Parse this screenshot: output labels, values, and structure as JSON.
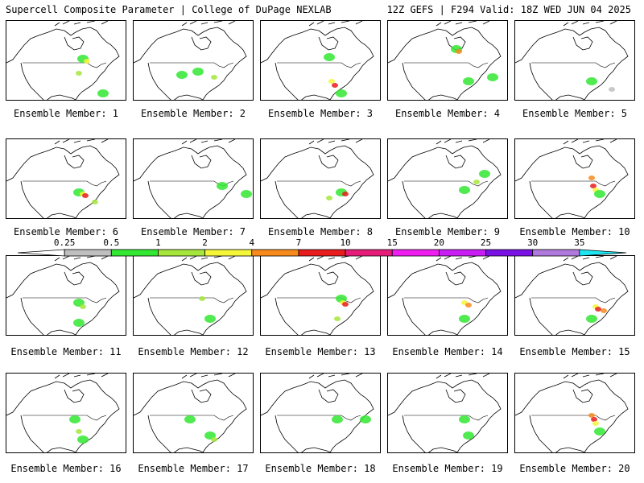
{
  "header": {
    "left": "Supercell Composite Parameter | College of DuPage NEXLAB",
    "right": "12Z GEFS | F294 Valid: 18Z WED JUN 04 2025"
  },
  "colorbar": {
    "labels": [
      "0.25",
      "0.5",
      "1",
      "2",
      "4",
      "7",
      "10",
      "15",
      "20",
      "25",
      "30",
      "35"
    ],
    "colors": [
      "#ffffff",
      "#bfbfbf",
      "#33e833",
      "#a6e63c",
      "#f5f53a",
      "#f78a1c",
      "#e81c1c",
      "#e51c78",
      "#f01ef0",
      "#c81ef5",
      "#7a12e6",
      "#b07adc",
      "#1ee6f0"
    ]
  },
  "members": [
    {
      "label": "Ensemble Member: 1",
      "blobs": [
        [
          95,
          72,
          "#33e833"
        ],
        [
          100,
          75,
          "#f5f53a"
        ],
        [
          90,
          90,
          "#a6e63c"
        ],
        [
          120,
          115,
          "#33e833"
        ]
      ]
    },
    {
      "label": "Ensemble Member: 2",
      "blobs": [
        [
          80,
          88,
          "#33e833"
        ],
        [
          100,
          95,
          "#a6e63c"
        ],
        [
          60,
          92,
          "#33e833"
        ]
      ]
    },
    {
      "label": "Ensemble Member: 3",
      "blobs": [
        [
          85,
          70,
          "#33e833"
        ],
        [
          88,
          100,
          "#f5f53a"
        ],
        [
          92,
          105,
          "#e81c1c"
        ],
        [
          100,
          115,
          "#33e833"
        ]
      ]
    },
    {
      "label": "Ensemble Member: 4",
      "blobs": [
        [
          85,
          60,
          "#33e833"
        ],
        [
          88,
          63,
          "#f78a1c"
        ],
        [
          130,
          95,
          "#33e833"
        ],
        [
          100,
          100,
          "#33e833"
        ]
      ]
    },
    {
      "label": "Ensemble Member: 5",
      "blobs": [
        [
          95,
          100,
          "#33e833"
        ],
        [
          120,
          110,
          "#bfbfbf"
        ]
      ]
    },
    {
      "label": "Ensemble Member: 6",
      "blobs": [
        [
          90,
          238,
          "#33e833"
        ],
        [
          95,
          240,
          "#f5f53a"
        ],
        [
          98,
          242,
          "#e81c1c"
        ],
        [
          110,
          250,
          "#a6e63c"
        ]
      ]
    },
    {
      "label": "Ensemble Member: 7",
      "blobs": [
        [
          110,
          230,
          "#33e833"
        ],
        [
          140,
          240,
          "#33e833"
        ]
      ]
    },
    {
      "label": "Ensemble Member: 8",
      "blobs": [
        [
          100,
          238,
          "#33e833"
        ],
        [
          105,
          240,
          "#e81c1c"
        ],
        [
          85,
          245,
          "#a6e63c"
        ]
      ]
    },
    {
      "label": "Ensemble Member: 9",
      "blobs": [
        [
          95,
          235,
          "#33e833"
        ],
        [
          110,
          225,
          "#a6e63c"
        ],
        [
          120,
          215,
          "#33e833"
        ]
      ]
    },
    {
      "label": "Ensemble Member: 10",
      "blobs": [
        [
          95,
          220,
          "#f78a1c"
        ],
        [
          97,
          230,
          "#e81c1c"
        ],
        [
          100,
          235,
          "#f5f53a"
        ],
        [
          105,
          240,
          "#33e833"
        ]
      ]
    },
    {
      "label": "Ensemble Member: 11",
      "blobs": [
        [
          90,
          375,
          "#33e833"
        ],
        [
          95,
          380,
          "#a6e63c"
        ],
        [
          90,
          400,
          "#33e833"
        ]
      ]
    },
    {
      "label": "Ensemble Member: 12",
      "blobs": [
        [
          85,
          370,
          "#a6e63c"
        ],
        [
          95,
          395,
          "#33e833"
        ]
      ]
    },
    {
      "label": "Ensemble Member: 13",
      "blobs": [
        [
          100,
          370,
          "#33e833"
        ],
        [
          102,
          375,
          "#f5f53a"
        ],
        [
          105,
          377,
          "#e81c1c"
        ],
        [
          95,
          395,
          "#a6e63c"
        ]
      ]
    },
    {
      "label": "Ensemble Member: 14",
      "blobs": [
        [
          95,
          375,
          "#f5f53a"
        ],
        [
          100,
          378,
          "#f78a1c"
        ],
        [
          95,
          395,
          "#33e833"
        ]
      ]
    },
    {
      "label": "Ensemble Member: 15",
      "blobs": [
        [
          100,
          380,
          "#f5f53a"
        ],
        [
          103,
          383,
          "#e81c1c"
        ],
        [
          110,
          385,
          "#f78a1c"
        ],
        [
          95,
          395,
          "#33e833"
        ]
      ]
    },
    {
      "label": "Ensemble Member: 16",
      "blobs": [
        [
          85,
          520,
          "#33e833"
        ],
        [
          90,
          535,
          "#a6e63c"
        ],
        [
          95,
          545,
          "#33e833"
        ]
      ]
    },
    {
      "label": "Ensemble Member: 17",
      "blobs": [
        [
          95,
          540,
          "#33e833"
        ],
        [
          100,
          545,
          "#a6e63c"
        ],
        [
          70,
          520,
          "#33e833"
        ]
      ]
    },
    {
      "label": "Ensemble Member: 18",
      "blobs": [
        [
          95,
          520,
          "#33e833"
        ],
        [
          130,
          520,
          "#33e833"
        ]
      ]
    },
    {
      "label": "Ensemble Member: 19",
      "blobs": [
        [
          95,
          520,
          "#33e833"
        ],
        [
          100,
          540,
          "#33e833"
        ]
      ]
    },
    {
      "label": "Ensemble Member: 20",
      "blobs": [
        [
          95,
          515,
          "#f78a1c"
        ],
        [
          98,
          520,
          "#e81c1c"
        ],
        [
          100,
          525,
          "#f5f53a"
        ],
        [
          105,
          535,
          "#33e833"
        ]
      ]
    }
  ]
}
